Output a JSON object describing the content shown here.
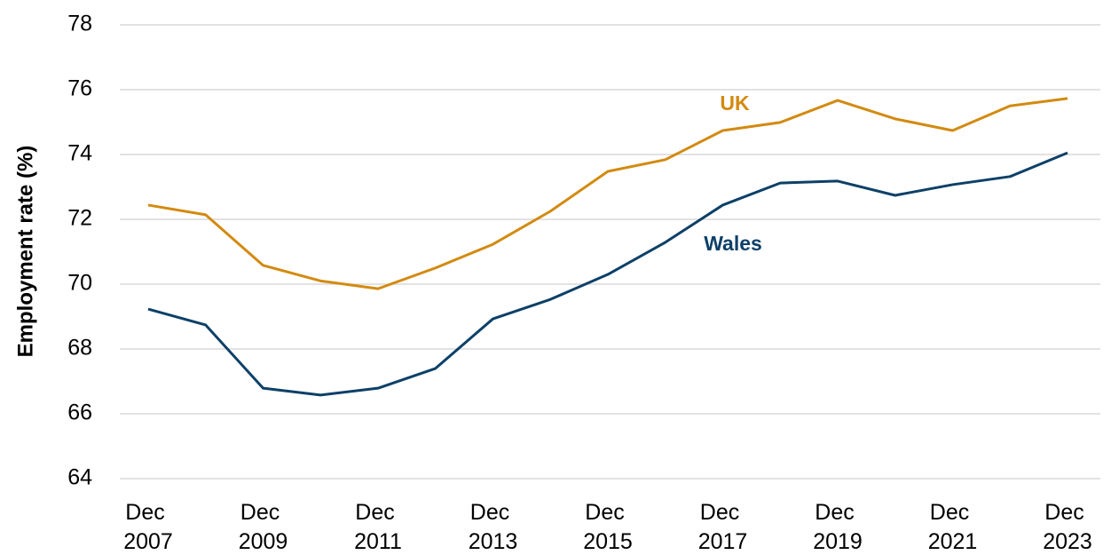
{
  "chart_data": {
    "type": "line",
    "y_label": "Employment rate (%)",
    "categories": [
      "Dec 2007",
      null,
      "Dec 2009",
      null,
      "Dec 2011",
      null,
      "Dec 2013",
      null,
      "Dec 2015",
      null,
      "Dec 2017",
      null,
      "Dec 2019",
      null,
      "Dec 2021",
      null,
      "Dec 2023"
    ],
    "series": [
      {
        "name": "UK",
        "color": "#d38a0f",
        "values": [
          72.44,
          72.14,
          70.58,
          70.1,
          69.86,
          70.5,
          71.23,
          72.25,
          73.48,
          73.84,
          74.74,
          74.99,
          75.67,
          75.1,
          74.74,
          75.5,
          75.73
        ]
      },
      {
        "name": "Wales",
        "color": "#0d4068",
        "values": [
          69.23,
          68.74,
          66.79,
          66.58,
          66.79,
          67.4,
          68.93,
          69.53,
          70.3,
          71.29,
          72.44,
          73.12,
          73.18,
          72.74,
          73.07,
          73.32,
          74.05
        ]
      }
    ],
    "ylim": [
      64,
      78
    ],
    "yticks": [
      64,
      66,
      68,
      70,
      72,
      74,
      76,
      78
    ],
    "grid": true
  }
}
